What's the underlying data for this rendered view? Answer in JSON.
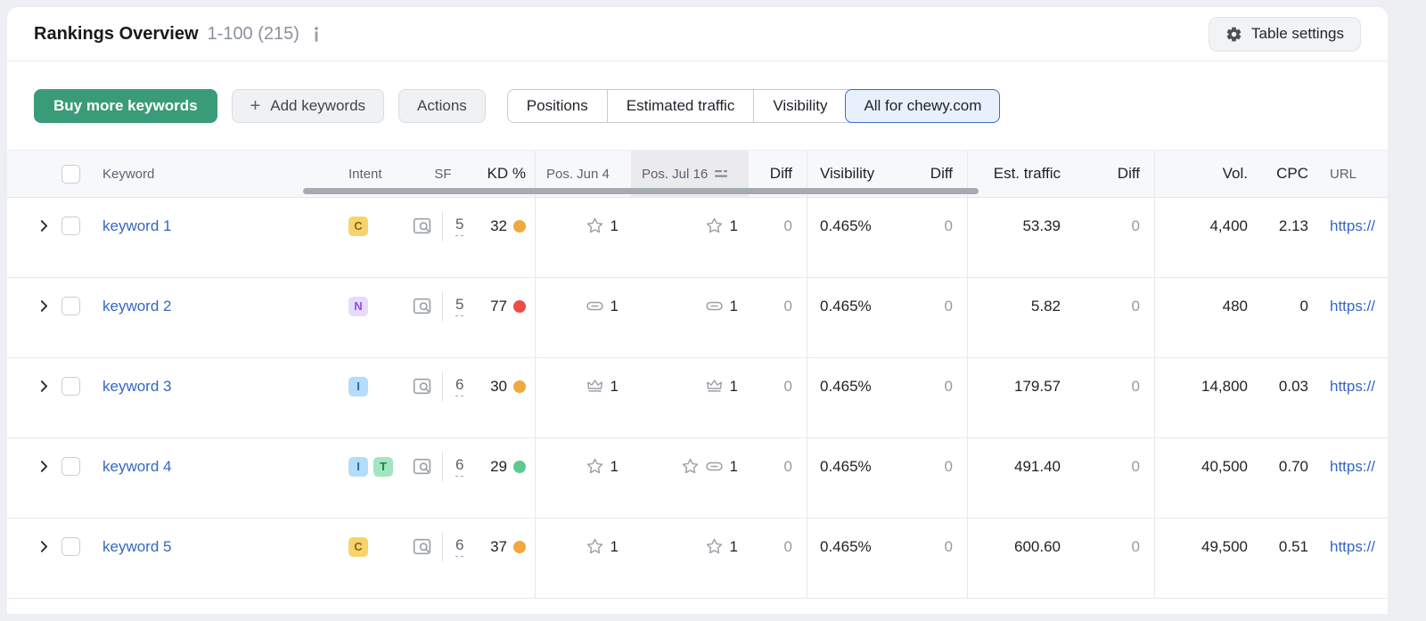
{
  "header": {
    "title": "Rankings Overview",
    "range": "1-100 (215)",
    "info_icon": "info-icon",
    "table_settings_label": "Table settings",
    "table_settings_icon": "gear-icon"
  },
  "toolbar": {
    "buy_label": "Buy more keywords",
    "add_plus": "+",
    "add_label": "Add keywords",
    "actions_label": "Actions",
    "view_tabs": [
      {
        "label": "Positions",
        "active": false
      },
      {
        "label": "Estimated traffic",
        "active": false
      },
      {
        "label": "Visibility",
        "active": false
      },
      {
        "label": "All for chewy.com",
        "active": true
      }
    ]
  },
  "table": {
    "columns": {
      "keyword": "Keyword",
      "intent": "Intent",
      "sf": "SF",
      "kd": "KD %",
      "pos_jun": "Pos. Jun 4",
      "pos_jul": "Pos. Jul 16",
      "diff": "Diff",
      "visibility": "Visibility",
      "diff_vis": "Diff",
      "est_traffic": "Est. traffic",
      "diff_traffic": "Diff",
      "volume": "Vol.",
      "cpc": "CPC",
      "url": "URL"
    },
    "sort_column": "Pos. Jul 16",
    "sort_icon": "sort-desc-icon",
    "sf_icon": "serp-features-icon",
    "expander_icon": "chevron-right-icon",
    "rows": [
      {
        "keyword": "keyword 1",
        "intent": [
          "C"
        ],
        "sf": "5",
        "kd": "32",
        "kd_level": "orange",
        "pos_jun": {
          "icons": [
            "star"
          ],
          "value": "1"
        },
        "pos_jul": {
          "icons": [
            "star"
          ],
          "value": "1"
        },
        "diff_pos": "0",
        "visibility": "0.465%",
        "diff_vis": "0",
        "est_traffic": "53.39",
        "diff_traffic": "0",
        "volume": "4,400",
        "cpc": "2.13",
        "url": "https://"
      },
      {
        "keyword": "keyword 2",
        "intent": [
          "N"
        ],
        "sf": "5",
        "kd": "77",
        "kd_level": "red",
        "pos_jun": {
          "icons": [
            "link"
          ],
          "value": "1"
        },
        "pos_jul": {
          "icons": [
            "link"
          ],
          "value": "1"
        },
        "diff_pos": "0",
        "visibility": "0.465%",
        "diff_vis": "0",
        "est_traffic": "5.82",
        "diff_traffic": "0",
        "volume": "480",
        "cpc": "0",
        "url": "https://"
      },
      {
        "keyword": "keyword 3",
        "intent": [
          "I"
        ],
        "sf": "6",
        "kd": "30",
        "kd_level": "orange",
        "pos_jun": {
          "icons": [
            "crown"
          ],
          "value": "1"
        },
        "pos_jul": {
          "icons": [
            "crown"
          ],
          "value": "1"
        },
        "diff_pos": "0",
        "visibility": "0.465%",
        "diff_vis": "0",
        "est_traffic": "179.57",
        "diff_traffic": "0",
        "volume": "14,800",
        "cpc": "0.03",
        "url": "https://"
      },
      {
        "keyword": "keyword 4",
        "intent": [
          "I",
          "T"
        ],
        "sf": "6",
        "kd": "29",
        "kd_level": "green",
        "pos_jun": {
          "icons": [
            "star"
          ],
          "value": "1"
        },
        "pos_jul": {
          "icons": [
            "star",
            "link"
          ],
          "value": "1"
        },
        "diff_pos": "0",
        "visibility": "0.465%",
        "diff_vis": "0",
        "est_traffic": "491.40",
        "diff_traffic": "0",
        "volume": "40,500",
        "cpc": "0.70",
        "url": "https://"
      },
      {
        "keyword": "keyword 5",
        "intent": [
          "C"
        ],
        "sf": "6",
        "kd": "37",
        "kd_level": "orange",
        "pos_jun": {
          "icons": [
            "star"
          ],
          "value": "1"
        },
        "pos_jul": {
          "icons": [
            "star"
          ],
          "value": "1"
        },
        "diff_pos": "0",
        "visibility": "0.465%",
        "diff_vis": "0",
        "est_traffic": "600.60",
        "diff_traffic": "0",
        "volume": "49,500",
        "cpc": "0.51",
        "url": "https://"
      }
    ]
  },
  "colors": {
    "accent_green": "#3a9b78",
    "active_tab_bg": "#e8f1fb",
    "active_tab_border": "#3b6fc9",
    "link_blue": "#3366c4",
    "header_bg": "#f7f8fa",
    "sorted_header_bg": "#ebebee",
    "intent": {
      "C": {
        "bg": "#f6d36c",
        "text": "#8a6512"
      },
      "N": {
        "bg": "#e7dbfc",
        "text": "#8a4dec"
      },
      "I": {
        "bg": "#b5dcf8",
        "text": "#2468b0"
      },
      "T": {
        "bg": "#a2e6c0",
        "text": "#1d7f4d"
      }
    },
    "kd_dots": {
      "orange": "#efa93c",
      "red": "#ee4b45",
      "green": "#5ec88e"
    }
  }
}
